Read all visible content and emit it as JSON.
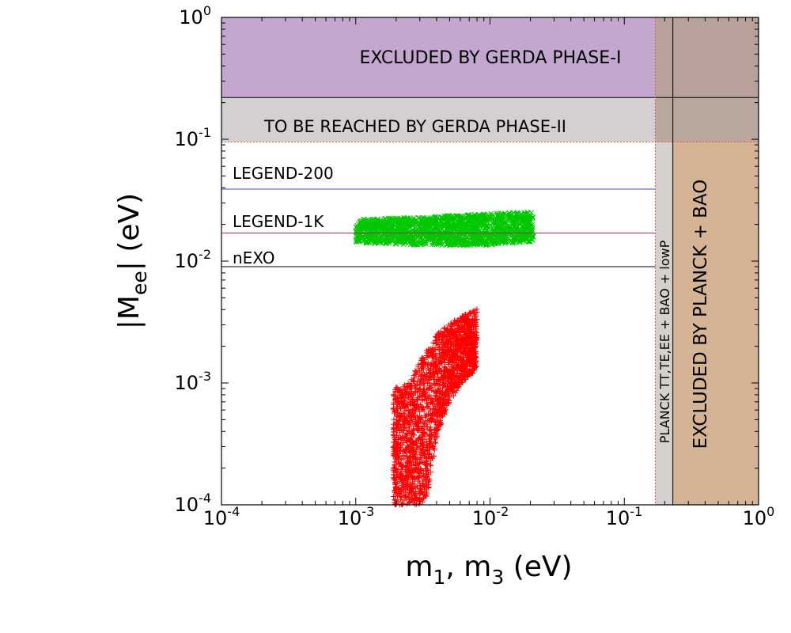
{
  "chart_data": {
    "type": "scatter",
    "x_scale": "log",
    "y_scale": "log",
    "xlim": [
      0.0001,
      1
    ],
    "ylim": [
      0.0001,
      1
    ],
    "xlabel": {
      "base": "m",
      "sub1": "1",
      "mid": ", m",
      "sub2": "3",
      "tail": " (eV)"
    },
    "ylabel": {
      "pre": "|M",
      "sub": "ee",
      "post": "| (eV)"
    },
    "x_ticks": [
      {
        "value": 0.0001,
        "base": "10",
        "exp": "-4"
      },
      {
        "value": 0.001,
        "base": "10",
        "exp": "-3"
      },
      {
        "value": 0.01,
        "base": "10",
        "exp": "-2"
      },
      {
        "value": 0.1,
        "base": "10",
        "exp": "-1"
      },
      {
        "value": 1,
        "base": "10",
        "exp": "0"
      }
    ],
    "y_ticks": [
      {
        "value": 0.0001,
        "base": "10",
        "exp": "-4"
      },
      {
        "value": 0.001,
        "base": "10",
        "exp": "-3"
      },
      {
        "value": 0.01,
        "base": "10",
        "exp": "-2"
      },
      {
        "value": 0.1,
        "base": "10",
        "exp": "-1"
      },
      {
        "value": 1,
        "base": "10",
        "exp": "0"
      }
    ],
    "excluded_regions": [
      {
        "name": "gerda-phase1",
        "label": "EXCLUDED BY GERDA PHASE-I",
        "x_range": [
          0.0001,
          0.17
        ],
        "y_range": [
          0.22,
          1
        ],
        "color": "#c3a7cf"
      },
      {
        "name": "gerda-phase1-overlap",
        "label": "",
        "x_range": [
          0.17,
          1
        ],
        "y_range": [
          0.22,
          1
        ],
        "color": "#b8a19b"
      },
      {
        "name": "gerda-phase2",
        "label": "TO BE REACHED BY GERDA PHASE-II",
        "x_range": [
          0.0001,
          0.17
        ],
        "y_range": [
          0.095,
          0.22
        ],
        "color": "#d4d0cf"
      },
      {
        "name": "gerda-phase2-overlap",
        "label": "",
        "x_range": [
          0.17,
          1
        ],
        "y_range": [
          0.095,
          0.22
        ],
        "color": "#b9a89e"
      },
      {
        "name": "planck-lowp",
        "label": "PLANCK TT,TE,EE + BAO + lowP",
        "x_range": [
          0.17,
          0.23
        ],
        "y_range": [
          0.0001,
          0.095
        ],
        "color": "#d4d0cf"
      },
      {
        "name": "planck-bao",
        "label": "EXCLUDED BY PLANCK + BAO",
        "x_range": [
          0.23,
          1
        ],
        "y_range": [
          0.0001,
          0.095
        ],
        "color": "#d4b495"
      }
    ],
    "vertical_lines": [
      {
        "name": "planck-lowp-limit",
        "x": 0.17,
        "style": "dotted",
        "color": "#e05050"
      },
      {
        "name": "planck-bao-limit",
        "x": 0.23,
        "style": "solid",
        "color": "#000000"
      }
    ],
    "horizontal_lines": [
      {
        "name": "gerda1-limit",
        "y": 0.22,
        "x_end": 1,
        "style": "solid",
        "color": "#000000"
      },
      {
        "name": "gerda2-limit",
        "y": 0.095,
        "x_end": 1,
        "style": "dotted",
        "color": "#e05050"
      }
    ],
    "sensitivity_lines": [
      {
        "name": "legend-200",
        "label": "LEGEND-200",
        "y": 0.039,
        "color": "#3a4fbf"
      },
      {
        "name": "legend-1k",
        "label": "LEGEND-1K",
        "y": 0.017,
        "color": "#a0304f"
      },
      {
        "name": "nexo",
        "label": "nEXO",
        "y": 0.009,
        "color": "#000000"
      }
    ],
    "series": [
      {
        "name": "green-band",
        "marker": "x",
        "color": "#00c800",
        "x_range": [
          0.001,
          0.021
        ],
        "y_lower": [
          [
            0.001,
            0.0142
          ],
          [
            0.003,
            0.0135
          ],
          [
            0.01,
            0.0135
          ],
          [
            0.021,
            0.0145
          ]
        ],
        "y_upper": [
          [
            0.001,
            0.022
          ],
          [
            0.003,
            0.023
          ],
          [
            0.01,
            0.0245
          ],
          [
            0.021,
            0.0255
          ]
        ]
      },
      {
        "name": "red-region",
        "marker": "+",
        "color": "#ff0000",
        "x_range": [
          0.0019,
          0.008
        ],
        "y_lower": [
          [
            0.0019,
            0.0001
          ],
          [
            0.0025,
            0.0001
          ],
          [
            0.0032,
            0.0001
          ],
          [
            0.0036,
            0.00015
          ],
          [
            0.004,
            0.00035
          ],
          [
            0.0048,
            0.00065
          ],
          [
            0.006,
            0.00095
          ],
          [
            0.008,
            0.0013
          ]
        ],
        "y_upper": [
          [
            0.0019,
            0.0009
          ],
          [
            0.0025,
            0.001
          ],
          [
            0.0028,
            0.0013
          ],
          [
            0.0032,
            0.0017
          ],
          [
            0.004,
            0.0025
          ],
          [
            0.0048,
            0.003
          ],
          [
            0.006,
            0.0035
          ],
          [
            0.008,
            0.0041
          ]
        ]
      }
    ]
  }
}
